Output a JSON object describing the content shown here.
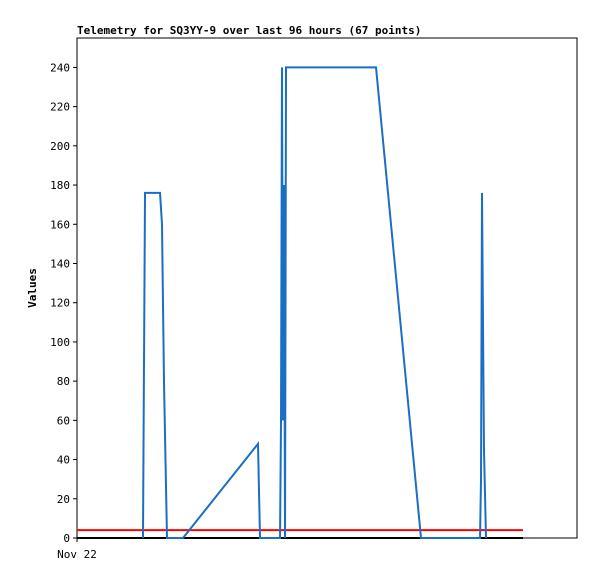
{
  "chart_data": {
    "type": "line",
    "title": "Telemetry for SQ3YY-9 over last 96 hours (67 points)",
    "y_label": "Values",
    "xlim": [
      0,
      96
    ],
    "xticks": [
      {
        "value": 0,
        "label": "Nov 22"
      }
    ],
    "ylim": [
      0,
      255
    ],
    "yticks": [
      0,
      20,
      40,
      60,
      80,
      100,
      120,
      140,
      160,
      180,
      200,
      220,
      240
    ],
    "series": [
      {
        "color": "#000000",
        "x": [
          0,
          85.63
        ],
        "values": [
          0,
          0
        ]
      },
      {
        "color": "#ff0000",
        "x": [
          0,
          85.63
        ],
        "values": [
          4,
          4
        ]
      },
      {
        "color": "#1a6fc4",
        "x": [
          12.67,
          12.86,
          13.06,
          15.94,
          16.32,
          16.7,
          17.28,
          20.35,
          34.75,
          35.14,
          38.98,
          39.17,
          39.36,
          39.55,
          39.74,
          39.94,
          40.13,
          57.41,
          66.05,
          77.38,
          77.57,
          77.76,
          78.14,
          78.53
        ],
        "values": [
          0,
          88,
          176,
          176,
          160,
          80,
          0,
          0,
          48,
          0,
          0,
          60,
          240,
          60,
          180,
          0,
          240,
          240,
          0,
          0,
          30,
          176,
          45,
          0
        ]
      }
    ]
  }
}
